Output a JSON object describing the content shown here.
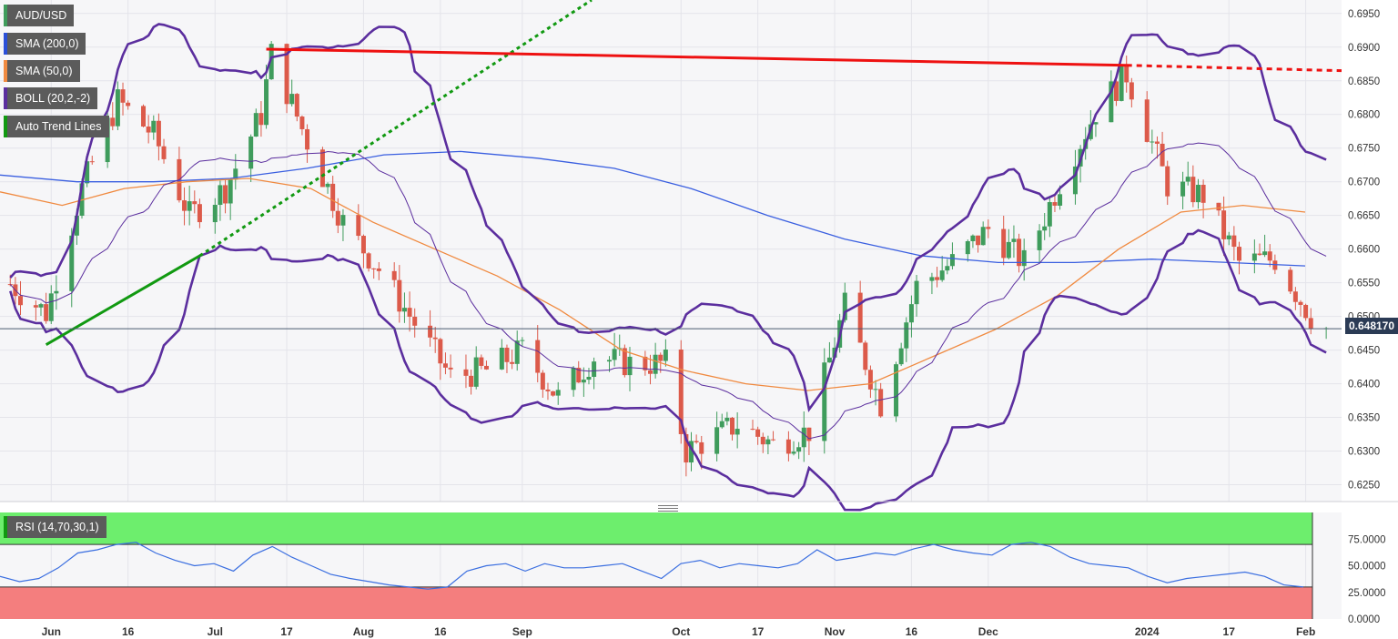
{
  "legends": {
    "symbol": "AUD/USD",
    "sma200": "SMA (200,0)",
    "sma50": "SMA (50,0)",
    "boll": "BOLL (20,2,-2)",
    "trend": "Auto Trend Lines",
    "rsi": "RSI (14,70,30,1)"
  },
  "colors": {
    "up": "#3f9c5c",
    "down": "#dc5a4a",
    "sma200": "#3a5fe0",
    "sma50": "#f08a40",
    "boll": "#5b2e9e",
    "trend_up": "#119911",
    "trend_down": "#ee1111",
    "rsi_line": "#3a6ee0",
    "rsi_upper_zone": "#6dee6d",
    "rsi_lower_zone": "#f47e7e"
  },
  "last_price": "0.648170",
  "chart_data": {
    "type": "candlestick",
    "symbol": "AUD/USD",
    "y_ticks": [
      "0.6950",
      "0.6900",
      "0.6850",
      "0.6800",
      "0.6750",
      "0.6700",
      "0.6650",
      "0.6600",
      "0.6550",
      "0.6500",
      "0.6450",
      "0.6400",
      "0.6350",
      "0.6300",
      "0.6250"
    ],
    "ylim": [
      0.6225,
      0.697
    ],
    "x_ticks": [
      "Jun",
      "16",
      "Jul",
      "17",
      "Aug",
      "16",
      "Sep",
      "Oct",
      "17",
      "Nov",
      "16",
      "Dec",
      "2024",
      "17",
      "Feb"
    ],
    "ohlc_close_track": [
      [
        "2023-05-24",
        0.6548
      ],
      [
        "2023-05-31",
        0.6505
      ],
      [
        "2023-06-07",
        0.669
      ],
      [
        "2023-06-14",
        0.682
      ],
      [
        "2023-06-21",
        0.677
      ],
      [
        "2023-06-28",
        0.665
      ],
      [
        "2023-07-05",
        0.669
      ],
      [
        "2023-07-12",
        0.68
      ],
      [
        "2023-07-14",
        0.689
      ],
      [
        "2023-07-21",
        0.676
      ],
      [
        "2023-07-28",
        0.664
      ],
      [
        "2023-08-04",
        0.657
      ],
      [
        "2023-08-11",
        0.649
      ],
      [
        "2023-08-18",
        0.641
      ],
      [
        "2023-08-25",
        0.642
      ],
      [
        "2023-09-01",
        0.645
      ],
      [
        "2023-09-08",
        0.638
      ],
      [
        "2023-09-15",
        0.644
      ],
      [
        "2023-09-22",
        0.643
      ],
      [
        "2023-09-29",
        0.643
      ],
      [
        "2023-10-03",
        0.63
      ],
      [
        "2023-10-13",
        0.634
      ],
      [
        "2023-10-20",
        0.631
      ],
      [
        "2023-10-27",
        0.633
      ],
      [
        "2023-11-03",
        0.6515
      ],
      [
        "2023-11-10",
        0.637
      ],
      [
        "2023-11-17",
        0.6545
      ],
      [
        "2023-11-24",
        0.658
      ],
      [
        "2023-12-01",
        0.663
      ],
      [
        "2023-12-08",
        0.658
      ],
      [
        "2023-12-15",
        0.67
      ],
      [
        "2023-12-22",
        0.6805
      ],
      [
        "2023-12-28",
        0.686
      ],
      [
        "2024-01-05",
        0.6695
      ],
      [
        "2024-01-12",
        0.668
      ],
      [
        "2024-01-19",
        0.658
      ],
      [
        "2024-01-26",
        0.6585
      ],
      [
        "2024-02-02",
        0.65
      ],
      [
        "2024-02-05",
        0.6482
      ]
    ],
    "sma200": [
      0.671,
      0.67,
      0.67,
      0.6705,
      0.672,
      0.674,
      0.6745,
      0.6735,
      0.672,
      0.669,
      0.665,
      0.6615,
      0.659,
      0.658,
      0.658,
      0.6585,
      0.658,
      0.6575
    ],
    "sma50": [
      0.6685,
      0.6665,
      0.669,
      0.67,
      0.6705,
      0.669,
      0.664,
      0.66,
      0.656,
      0.651,
      0.645,
      0.642,
      0.64,
      0.639,
      0.64,
      0.644,
      0.648,
      0.653,
      0.66,
      0.6655,
      0.6665,
      0.6655
    ],
    "rsi": {
      "levels": [
        70,
        30
      ],
      "y_ticks": [
        "75.0000",
        "50.0000",
        "25.0000",
        "0.0000"
      ],
      "values": [
        40,
        35,
        38,
        48,
        62,
        65,
        70,
        72,
        62,
        55,
        50,
        52,
        45,
        60,
        68,
        58,
        50,
        42,
        38,
        35,
        32,
        30,
        28,
        30,
        45,
        50,
        52,
        45,
        52,
        48,
        48,
        50,
        52,
        45,
        38,
        52,
        55,
        48,
        52,
        50,
        48,
        52,
        65,
        55,
        58,
        62,
        60,
        66,
        70,
        65,
        62,
        60,
        70,
        72,
        68,
        58,
        52,
        50,
        48,
        40,
        34,
        38,
        40,
        42,
        44,
        40,
        32,
        30
      ]
    },
    "title": "",
    "xlabel": "",
    "ylabel": ""
  }
}
